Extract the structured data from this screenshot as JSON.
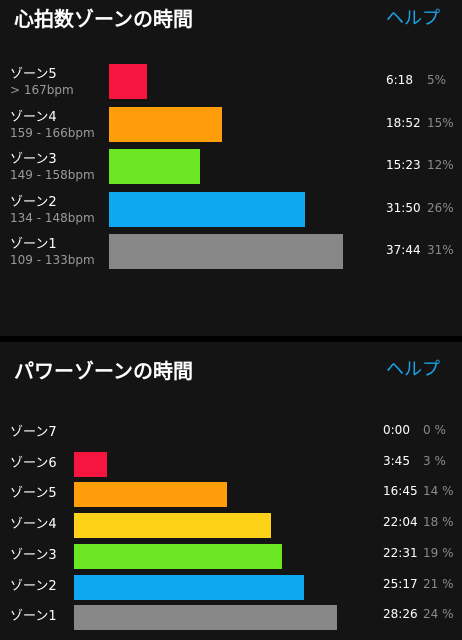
{
  "heart_rate": {
    "title": "心拍数ゾーンの時間",
    "help_label": "ヘルプ",
    "zones": [
      {
        "name": "ゾーン5",
        "range": "> 167bpm",
        "time": "6:18",
        "percent": "5%",
        "color": "#f5153e",
        "bar_value": 5
      },
      {
        "name": "ゾーン4",
        "range": "159 - 166bpm",
        "time": "18:52",
        "percent": "15%",
        "color": "#ff9d0a",
        "bar_value": 15
      },
      {
        "name": "ゾーン3",
        "range": "149 - 158bpm",
        "time": "15:23",
        "percent": "12%",
        "color": "#6ae623",
        "bar_value": 12
      },
      {
        "name": "ゾーン2",
        "range": "134 - 148bpm",
        "time": "31:50",
        "percent": "26%",
        "color": "#0da8ef",
        "bar_value": 26
      },
      {
        "name": "ゾーン1",
        "range": "109 - 133bpm",
        "time": "37:44",
        "percent": "31%",
        "color": "#878787",
        "bar_value": 31
      }
    ]
  },
  "power": {
    "title": "パワーゾーンの時間",
    "help_label": "ヘルプ",
    "zones": [
      {
        "name": "ゾーン7",
        "time": "0:00",
        "percent": "0 %",
        "color": "#f5153e",
        "bar_value": 0
      },
      {
        "name": "ゾーン6",
        "time": "3:45",
        "percent": "3 %",
        "color": "#f5153e",
        "bar_value": 3
      },
      {
        "name": "ゾーン5",
        "time": "16:45",
        "percent": "14 %",
        "color": "#ff9d0a",
        "bar_value": 14
      },
      {
        "name": "ゾーン4",
        "time": "22:04",
        "percent": "18 %",
        "color": "#ffd21a",
        "bar_value": 18
      },
      {
        "name": "ゾーン3",
        "time": "22:31",
        "percent": "19 %",
        "color": "#6ae623",
        "bar_value": 19
      },
      {
        "name": "ゾーン2",
        "time": "25:17",
        "percent": "21 %",
        "color": "#0da8ef",
        "bar_value": 21
      },
      {
        "name": "ゾーン1",
        "time": "28:26",
        "percent": "24 %",
        "color": "#878787",
        "bar_value": 24
      }
    ]
  }
}
